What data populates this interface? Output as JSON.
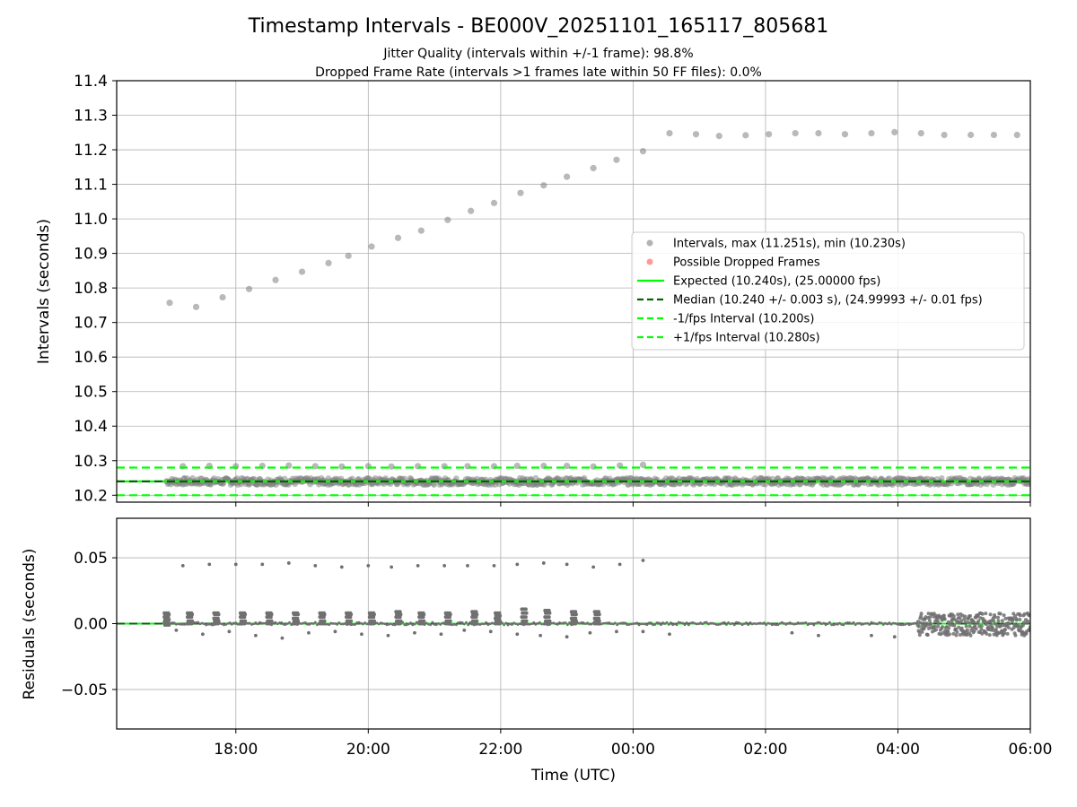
{
  "figure": {
    "title": "Timestamp Intervals - BE000V_20251101_165117_805681",
    "subtitle_line1": "Jitter Quality (intervals within +/-1 frame): 98.8%",
    "subtitle_line2": "Dropped Frame Rate (intervals >1 frames late within 50 FF files): 0.0%"
  },
  "chart_data": [
    {
      "type": "scatter",
      "panel": "intervals",
      "ylabel": "Intervals (seconds)",
      "ylim": [
        10.18,
        11.4
      ],
      "yticks": [
        10.2,
        10.3,
        10.4,
        10.5,
        10.6,
        10.7,
        10.8,
        10.9,
        11.0,
        11.1,
        11.2,
        11.3,
        11.4
      ],
      "ytick_labels": [
        "10.2",
        "10.3",
        "10.4",
        "10.5",
        "10.6",
        "10.7",
        "10.8",
        "10.9",
        "11.0",
        "11.1",
        "11.2",
        "11.3",
        "11.4"
      ],
      "xlim_hours": [
        16.2,
        30.0
      ],
      "xticks_hours": [
        18,
        20,
        22,
        24,
        26,
        28,
        30
      ],
      "xtick_labels": [
        "18:00",
        "20:00",
        "22:00",
        "00:00",
        "02:00",
        "04:00",
        "06:00"
      ],
      "grid": true,
      "legend_position": "right",
      "legend": [
        {
          "label": "Intervals, max (11.251s), min (10.230s)",
          "kind": "marker",
          "color": "#808080"
        },
        {
          "label": "Possible Dropped Frames",
          "kind": "marker",
          "color": "#ff5555"
        },
        {
          "label": "Expected (10.240s), (25.00000 fps)",
          "kind": "solid",
          "color": "#00ff00"
        },
        {
          "label": "Median (10.240 +/- 0.003 s), (24.99993 +/- 0.01 fps)",
          "kind": "dashed",
          "color": "#006400"
        },
        {
          "label": "-1/fps Interval (10.200s)",
          "kind": "dashed",
          "color": "#00ff00"
        },
        {
          "label": "+1/fps Interval (10.280s)",
          "kind": "dashed",
          "color": "#00ff00"
        }
      ],
      "reference_lines": {
        "expected": 10.24,
        "median": 10.24,
        "minus_one_fps": 10.2,
        "plus_one_fps": 10.28
      },
      "series": [
        {
          "name": "Intervals, max (11.251s), min (10.230s)",
          "color": "#808080",
          "points": [
            [
              17.0,
              10.757
            ],
            [
              17.4,
              10.745
            ],
            [
              17.8,
              10.773
            ],
            [
              18.2,
              10.797
            ],
            [
              18.6,
              10.823
            ],
            [
              19.0,
              10.847
            ],
            [
              19.4,
              10.872
            ],
            [
              19.7,
              10.893
            ],
            [
              20.05,
              10.92
            ],
            [
              20.45,
              10.945
            ],
            [
              20.8,
              10.966
            ],
            [
              21.2,
              10.997
            ],
            [
              21.55,
              11.023
            ],
            [
              21.9,
              11.046
            ],
            [
              22.3,
              11.075
            ],
            [
              22.65,
              11.097
            ],
            [
              23.0,
              11.122
            ],
            [
              23.4,
              11.147
            ],
            [
              23.75,
              11.171
            ],
            [
              24.15,
              11.196
            ],
            [
              24.55,
              11.248
            ],
            [
              24.95,
              11.245
            ],
            [
              25.3,
              11.24
            ],
            [
              25.7,
              11.242
            ],
            [
              26.05,
              11.245
            ],
            [
              26.45,
              11.248
            ],
            [
              26.8,
              11.248
            ],
            [
              27.2,
              11.245
            ],
            [
              27.6,
              11.248
            ],
            [
              27.95,
              11.251
            ],
            [
              28.35,
              11.248
            ],
            [
              28.7,
              11.243
            ],
            [
              29.1,
              11.243
            ],
            [
              29.45,
              11.243
            ],
            [
              29.8,
              11.243
            ],
            [
              17.2,
              10.284
            ],
            [
              17.6,
              10.285
            ],
            [
              18.0,
              10.284
            ],
            [
              18.4,
              10.285
            ],
            [
              18.8,
              10.286
            ],
            [
              19.2,
              10.284
            ],
            [
              19.6,
              10.283
            ],
            [
              20.0,
              10.284
            ],
            [
              20.35,
              10.283
            ],
            [
              20.75,
              10.284
            ],
            [
              21.15,
              10.284
            ],
            [
              21.5,
              10.284
            ],
            [
              21.9,
              10.284
            ],
            [
              22.25,
              10.285
            ],
            [
              22.65,
              10.285
            ],
            [
              23.0,
              10.285
            ],
            [
              23.4,
              10.283
            ],
            [
              23.8,
              10.286
            ],
            [
              24.15,
              10.288
            ]
          ],
          "dense_band": {
            "center": 10.24,
            "min": 10.23,
            "max": 10.252
          }
        }
      ]
    },
    {
      "type": "scatter",
      "panel": "residuals",
      "ylabel": "Residuals (seconds)",
      "xlabel": "Time (UTC)",
      "ylim": [
        -0.08,
        0.08
      ],
      "yticks": [
        -0.05,
        0.0,
        0.05
      ],
      "ytick_labels": [
        "−0.05",
        "0.00",
        "0.05"
      ],
      "xlim_hours": [
        16.2,
        30.0
      ],
      "xticks_hours": [
        18,
        20,
        22,
        24,
        26,
        28,
        30
      ],
      "xtick_labels": [
        "18:00",
        "20:00",
        "22:00",
        "00:00",
        "02:00",
        "04:00",
        "06:00"
      ],
      "grid": true,
      "reference_lines": {
        "zero": 0.0
      },
      "series": [
        {
          "name": "",
          "color": "#707070",
          "points": [
            [
              17.2,
              0.044
            ],
            [
              17.6,
              0.045
            ],
            [
              18.0,
              0.045
            ],
            [
              18.4,
              0.045
            ],
            [
              18.8,
              0.046
            ],
            [
              19.2,
              0.044
            ],
            [
              19.6,
              0.043
            ],
            [
              20.0,
              0.044
            ],
            [
              20.35,
              0.043
            ],
            [
              20.75,
              0.044
            ],
            [
              21.15,
              0.044
            ],
            [
              21.5,
              0.044
            ],
            [
              21.9,
              0.044
            ],
            [
              22.25,
              0.045
            ],
            [
              22.65,
              0.046
            ],
            [
              23.0,
              0.045
            ],
            [
              23.4,
              0.043
            ],
            [
              23.8,
              0.045
            ],
            [
              24.15,
              0.048
            ],
            [
              17.1,
              -0.005
            ],
            [
              17.5,
              -0.008
            ],
            [
              17.9,
              -0.006
            ],
            [
              18.3,
              -0.009
            ],
            [
              18.7,
              -0.011
            ],
            [
              19.1,
              -0.007
            ],
            [
              19.5,
              -0.006
            ],
            [
              19.9,
              -0.008
            ],
            [
              20.3,
              -0.009
            ],
            [
              20.7,
              -0.007
            ],
            [
              21.1,
              -0.008
            ],
            [
              21.45,
              -0.005
            ],
            [
              21.85,
              -0.006
            ],
            [
              22.25,
              -0.008
            ],
            [
              22.6,
              -0.009
            ],
            [
              23.0,
              -0.01
            ],
            [
              23.35,
              -0.007
            ],
            [
              23.75,
              -0.006
            ],
            [
              24.15,
              -0.006
            ],
            [
              24.55,
              -0.008
            ],
            [
              26.4,
              -0.007
            ],
            [
              26.8,
              -0.009
            ],
            [
              27.6,
              -0.009
            ],
            [
              27.95,
              -0.01
            ]
          ],
          "clusters": [
            {
              "x": 16.95,
              "y_values": [
                0.008,
                0.007,
                0.005,
                0.003,
                0.001,
                -0.001
              ]
            },
            {
              "x": 17.3,
              "y_values": [
                0.008,
                0.007,
                0.005,
                0.002,
                0.0
              ]
            },
            {
              "x": 17.7,
              "y_values": [
                0.008,
                0.007,
                0.004,
                0.002,
                0.0
              ]
            },
            {
              "x": 18.1,
              "y_values": [
                0.008,
                0.007,
                0.005,
                0.002,
                0.0
              ]
            },
            {
              "x": 18.5,
              "y_values": [
                0.008,
                0.007,
                0.005,
                0.002,
                0.0
              ]
            },
            {
              "x": 18.9,
              "y_values": [
                0.008,
                0.007,
                0.004,
                0.002,
                0.0
              ]
            },
            {
              "x": 19.3,
              "y_values": [
                0.008,
                0.007,
                0.005,
                0.002,
                0.0
              ]
            },
            {
              "x": 19.7,
              "y_values": [
                0.008,
                0.007,
                0.005,
                0.002,
                0.0
              ]
            },
            {
              "x": 20.05,
              "y_values": [
                0.008,
                0.007,
                0.005,
                0.002,
                0.0
              ]
            },
            {
              "x": 20.45,
              "y_values": [
                0.009,
                0.007,
                0.005,
                0.002,
                0.0
              ]
            },
            {
              "x": 20.8,
              "y_values": [
                0.008,
                0.007,
                0.005,
                0.002,
                0.0
              ]
            },
            {
              "x": 21.2,
              "y_values": [
                0.008,
                0.007,
                0.005,
                0.002,
                0.0
              ]
            },
            {
              "x": 21.6,
              "y_values": [
                0.009,
                0.007,
                0.005,
                0.002,
                0.0
              ]
            },
            {
              "x": 21.95,
              "y_values": [
                0.008,
                0.006,
                0.004,
                0.002,
                0.0
              ]
            },
            {
              "x": 22.35,
              "y_values": [
                0.011,
                0.008,
                0.005,
                0.002,
                0.0
              ]
            },
            {
              "x": 22.7,
              "y_values": [
                0.01,
                0.008,
                0.005,
                0.002,
                0.0
              ]
            },
            {
              "x": 23.1,
              "y_values": [
                0.009,
                0.007,
                0.004,
                0.002,
                0.0
              ]
            },
            {
              "x": 23.45,
              "y_values": [
                0.009,
                0.007,
                0.004,
                0.002,
                0.0
              ]
            }
          ],
          "dense_segment": {
            "x_start": 28.3,
            "x_end": 30.0,
            "y_min": -0.009,
            "y_max": 0.008
          }
        }
      ]
    }
  ]
}
